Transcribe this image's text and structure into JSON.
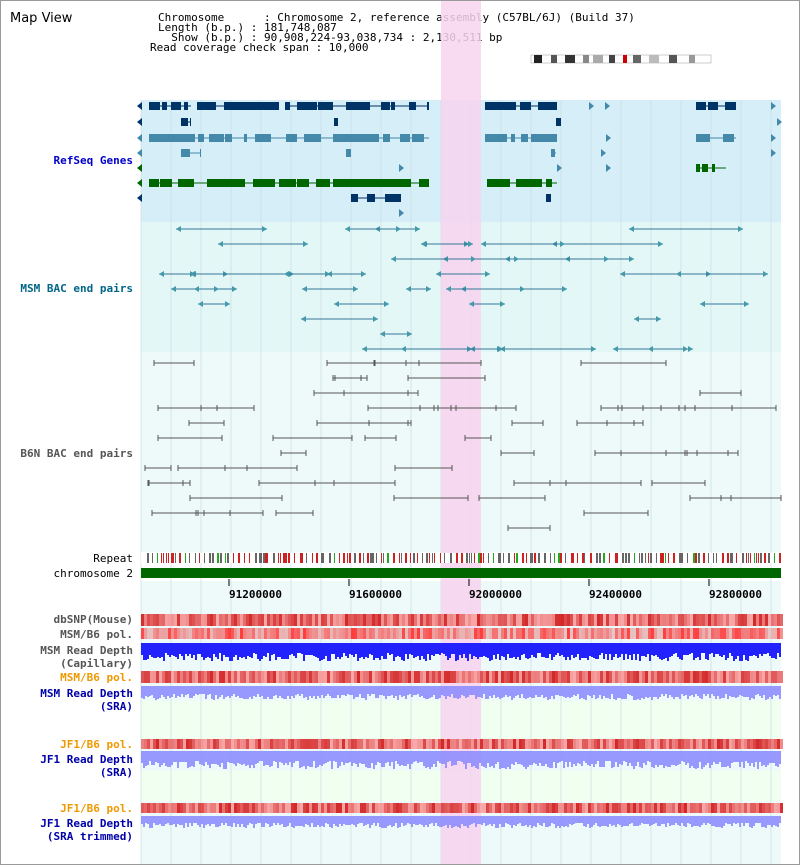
{
  "title": "Map View",
  "info": {
    "chromosome_line": "Chromosome      : Chromosome 2, reference assembly (C57BL/6J) (Build 37)",
    "length_line": "Length (b.p.) : 181,748,087",
    "show_line": "  Show (b.p.) : 90,908,224-93,038,734 : 2,130,511 bp",
    "span_line": "Read coverage check span : 10,000"
  },
  "tracks": {
    "refseq": "RefSeq Genes",
    "msm_bac": "MSM BAC end pairs",
    "b6n_bac": "B6N BAC end pairs",
    "repeat": "Repeat",
    "chromosome": "chromosome 2",
    "dbsnp": "dbSNP(Mouse)",
    "msm_b6_pol": "MSM/B6 pol.",
    "msm_depth_cap_1": "MSM Read Depth",
    "msm_depth_cap_2": "(Capillary)",
    "msm_b6_pol_2": "MSM/B6 pol.",
    "msm_depth_sra_1": "MSM Read Depth",
    "msm_depth_sra_2": "(SRA)",
    "jf1_b6_pol": "JF1/B6 pol.",
    "jf1_depth_sra_1": "JF1 Read Depth",
    "jf1_depth_sra_2": "(SRA)",
    "jf1_b6_pol_2": "JF1/B6 pol.",
    "jf1_depth_trim_1": "JF1 Read Depth",
    "jf1_depth_trim_2": "(SRA trimmed)"
  },
  "axis_ticks": [
    "91200000",
    "91600000",
    "92000000",
    "92400000",
    "92800000"
  ],
  "colors": {
    "refseq_bg": "#d6eef8",
    "msm_bg": "#e3f7f7",
    "band_bg": "#eef9f9",
    "highlight": "#f7d3ee",
    "refseq_label": "#0000cc",
    "msm_label": "#006688",
    "b6n_label": "#555555",
    "gene_dark": "#003366",
    "gene_mid": "#4488aa",
    "gene_green": "#006600",
    "chromosome": "#006600",
    "pol_red": "#ee3333",
    "depth_blue": "#2222ff",
    "depth_light": "#8888ff",
    "orange": "#ee9900"
  }
}
